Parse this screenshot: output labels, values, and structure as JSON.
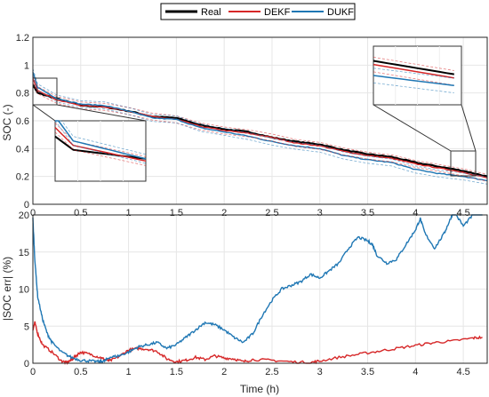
{
  "chart_data": [
    {
      "type": "line",
      "title": "",
      "xlabel": "",
      "ylabel": "SOC (-)",
      "xlim": [
        0,
        4.75
      ],
      "ylim": [
        0,
        1.2
      ],
      "xticks": [
        "0",
        "0.5",
        "1",
        "1.5",
        "2",
        "2.5",
        "3",
        "3.5",
        "4",
        "4.5"
      ],
      "yticks": [
        "0",
        "0.2",
        "0.4",
        "0.6",
        "0.8",
        "1",
        "1.2"
      ],
      "grid": true,
      "legend_position": "top-center",
      "insets": 2,
      "series": [
        {
          "name": "Real",
          "color": "#000000",
          "x": [
            0,
            0.05,
            0.25,
            0.5,
            0.75,
            1.0,
            1.25,
            1.5,
            1.75,
            2.0,
            2.25,
            2.5,
            2.75,
            3.0,
            3.25,
            3.5,
            3.75,
            4.0,
            4.25,
            4.5,
            4.75
          ],
          "y": [
            0.86,
            0.8,
            0.76,
            0.71,
            0.7,
            0.67,
            0.63,
            0.62,
            0.57,
            0.54,
            0.52,
            0.48,
            0.45,
            0.43,
            0.39,
            0.36,
            0.34,
            0.3,
            0.27,
            0.24,
            0.2
          ]
        },
        {
          "name": "DEKF",
          "color": "#d62728",
          "x": [
            0,
            0.05,
            0.25,
            0.5,
            0.75,
            1.0,
            1.25,
            1.5,
            1.75,
            2.0,
            2.25,
            2.5,
            2.75,
            3.0,
            3.25,
            3.5,
            3.75,
            4.0,
            4.25,
            4.5,
            4.75
          ],
          "y": [
            0.9,
            0.82,
            0.75,
            0.71,
            0.7,
            0.67,
            0.63,
            0.61,
            0.56,
            0.53,
            0.51,
            0.48,
            0.44,
            0.42,
            0.38,
            0.35,
            0.33,
            0.29,
            0.26,
            0.23,
            0.19
          ]
        },
        {
          "name": "DUKF",
          "color": "#1f77b4",
          "x": [
            0,
            0.05,
            0.25,
            0.5,
            0.75,
            1.0,
            1.25,
            1.5,
            1.75,
            2.0,
            2.25,
            2.5,
            2.75,
            3.0,
            3.25,
            3.5,
            3.75,
            4.0,
            4.25,
            4.5,
            4.75
          ],
          "y": [
            0.95,
            0.84,
            0.76,
            0.72,
            0.71,
            0.67,
            0.62,
            0.61,
            0.55,
            0.52,
            0.49,
            0.45,
            0.42,
            0.4,
            0.35,
            0.32,
            0.3,
            0.25,
            0.22,
            0.2,
            0.17
          ]
        }
      ]
    },
    {
      "type": "line",
      "title": "",
      "xlabel": "Time (h)",
      "ylabel": "|SOC err| (%)",
      "xlim": [
        0,
        4.75
      ],
      "ylim": [
        0,
        20
      ],
      "xticks": [
        "0",
        "0.5",
        "1",
        "1.5",
        "2",
        "2.5",
        "3",
        "3.5",
        "4",
        "4.5"
      ],
      "yticks": [
        "0",
        "5",
        "10",
        "15",
        "20"
      ],
      "grid": true,
      "series": [
        {
          "name": "DEKF",
          "color": "#d62728",
          "x": [
            0,
            0.02,
            0.05,
            0.1,
            0.2,
            0.3,
            0.35,
            0.4,
            0.45,
            0.5,
            0.6,
            0.7,
            0.75,
            0.8,
            0.9,
            1.0,
            1.1,
            1.2,
            1.3,
            1.4,
            1.5,
            1.6,
            1.7,
            1.8,
            1.9,
            2.0,
            2.1,
            2.2,
            2.3,
            2.5,
            2.7,
            2.9,
            3.0,
            3.2,
            3.4,
            3.6,
            3.8,
            4.0,
            4.2,
            4.4,
            4.6,
            4.7
          ],
          "y": [
            4.5,
            5.5,
            4.0,
            2.5,
            1.5,
            0.3,
            0.1,
            0.4,
            1.0,
            1.5,
            1.2,
            0.8,
            0.5,
            0.3,
            0.9,
            1.8,
            2.0,
            1.9,
            1.6,
            0.6,
            0.2,
            0.4,
            0.8,
            0.5,
            1.0,
            0.7,
            0.6,
            0.2,
            0.5,
            0.4,
            0.2,
            0.1,
            0.3,
            0.8,
            1.2,
            1.6,
            2.0,
            2.4,
            2.8,
            3.0,
            3.4,
            3.5
          ]
        },
        {
          "name": "DUKF",
          "color": "#1f77b4",
          "x": [
            0,
            0.02,
            0.05,
            0.1,
            0.15,
            0.2,
            0.3,
            0.4,
            0.5,
            0.6,
            0.7,
            0.75,
            0.8,
            0.9,
            1.0,
            1.1,
            1.2,
            1.3,
            1.4,
            1.5,
            1.6,
            1.7,
            1.8,
            1.9,
            2.0,
            2.1,
            2.2,
            2.3,
            2.4,
            2.5,
            2.6,
            2.7,
            2.8,
            2.9,
            3.0,
            3.1,
            3.2,
            3.3,
            3.4,
            3.5,
            3.55,
            3.6,
            3.7,
            3.8,
            3.9,
            4.0,
            4.05,
            4.1,
            4.2,
            4.3,
            4.35,
            4.4,
            4.5,
            4.6,
            4.7
          ],
          "y": [
            19.5,
            14.0,
            9.0,
            6.0,
            4.0,
            2.8,
            1.5,
            0.8,
            0.4,
            0.3,
            0.2,
            0.3,
            0.8,
            1.0,
            1.5,
            2.2,
            2.5,
            2.8,
            2.0,
            2.5,
            3.5,
            4.5,
            5.5,
            5.2,
            4.5,
            3.5,
            2.8,
            4.0,
            6.5,
            8.5,
            10.0,
            10.5,
            11.0,
            12.0,
            11.5,
            12.5,
            13.5,
            15.5,
            17.0,
            16.5,
            16.0,
            14.5,
            13.5,
            14.0,
            16.0,
            18.0,
            19.5,
            17.5,
            15.5,
            17.5,
            19.0,
            20.5,
            18.5,
            20.0,
            20.5
          ]
        }
      ]
    }
  ],
  "legend": {
    "real": "Real",
    "dekf": "DEKF",
    "dukf": "DUKF"
  }
}
